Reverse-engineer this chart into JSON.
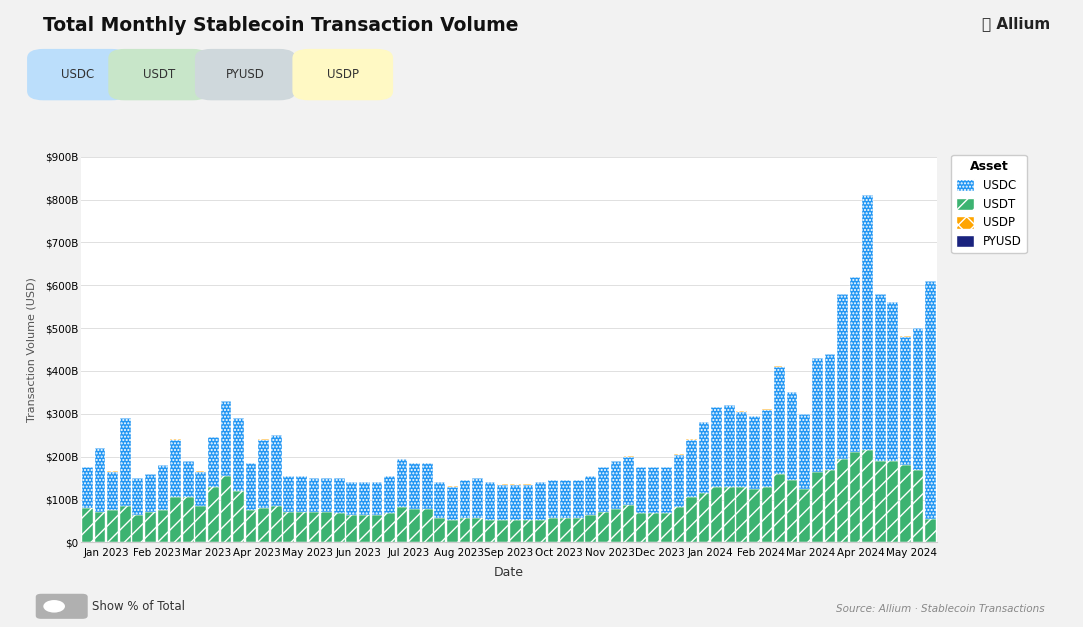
{
  "title": "Total Monthly Stablecoin Transaction Volume",
  "ylabel": "Transaction Volume (USD)",
  "xlabel": "Date",
  "background_color": "#f2f2f2",
  "plot_bg_color": "#ffffff",
  "ylim": [
    0,
    900000000000.0
  ],
  "yticks": [
    0,
    100000000000.0,
    200000000000.0,
    300000000000.0,
    400000000000.0,
    500000000000.0,
    600000000000.0,
    700000000000.0,
    800000000000.0,
    900000000000.0
  ],
  "source_text": "Source: Allium · Stablecoin Transactions",
  "months": [
    "Jan 2023",
    "Feb 2023",
    "Mar 2023",
    "Apr 2023",
    "May 2023",
    "Jun 2023",
    "Jul 2023",
    "Aug 2023",
    "Sep 2023",
    "Oct 2023",
    "Nov 2023",
    "Dec 2023",
    "Jan 2024",
    "Feb 2024",
    "Mar 2024",
    "Apr 2024",
    "May 2024"
  ],
  "usdt_vals": [
    80000000000.0,
    70000000000.0,
    75000000000.0,
    85000000000.0,
    65000000000.0,
    70000000000.0,
    75000000000.0,
    105000000000.0,
    105000000000.0,
    85000000000.0,
    130000000000.0,
    155000000000.0,
    120000000000.0,
    75000000000.0,
    80000000000.0,
    85000000000.0,
    72000000000.0,
    72000000000.0,
    72000000000.0,
    72000000000.0,
    68000000000.0,
    63000000000.0,
    63000000000.0,
    63000000000.0,
    68000000000.0,
    82000000000.0,
    78000000000.0,
    78000000000.0,
    58000000000.0,
    53000000000.0,
    58000000000.0,
    58000000000.0,
    53000000000.0,
    53000000000.0,
    53000000000.0,
    53000000000.0,
    53000000000.0,
    58000000000.0,
    58000000000.0,
    58000000000.0,
    63000000000.0,
    72000000000.0,
    78000000000.0,
    88000000000.0,
    68000000000.0,
    68000000000.0,
    68000000000.0,
    83000000000.0,
    105000000000.0,
    115000000000.0,
    130000000000.0,
    130000000000.0,
    130000000000.0,
    125000000000.0,
    130000000000.0,
    160000000000.0,
    145000000000.0,
    125000000000.0,
    165000000000.0,
    170000000000.0,
    195000000000.0,
    210000000000.0,
    215000000000.0,
    190000000000.0,
    190000000000.0,
    180000000000.0,
    170000000000.0,
    55000000000.0
  ],
  "usdc_vals": [
    95000000000.0,
    150000000000.0,
    90000000000.0,
    205000000000.0,
    85000000000.0,
    90000000000.0,
    105000000000.0,
    135000000000.0,
    85000000000.0,
    80000000000.0,
    115000000000.0,
    175000000000.0,
    170000000000.0,
    110000000000.0,
    160000000000.0,
    165000000000.0,
    83000000000.0,
    83000000000.0,
    78000000000.0,
    78000000000.0,
    82000000000.0,
    77000000000.0,
    77000000000.0,
    77000000000.0,
    87000000000.0,
    113000000000.0,
    107000000000.0,
    107000000000.0,
    82000000000.0,
    77000000000.0,
    87000000000.0,
    92000000000.0,
    87000000000.0,
    82000000000.0,
    82000000000.0,
    82000000000.0,
    87000000000.0,
    87000000000.0,
    87000000000.0,
    87000000000.0,
    92000000000.0,
    103000000000.0,
    112000000000.0,
    112000000000.0,
    107000000000.0,
    107000000000.0,
    107000000000.0,
    122000000000.0,
    135000000000.0,
    165000000000.0,
    185000000000.0,
    190000000000.0,
    175000000000.0,
    170000000000.0,
    180000000000.0,
    250000000000.0,
    205000000000.0,
    175000000000.0,
    265000000000.0,
    270000000000.0,
    385000000000.0,
    410000000000.0,
    595000000000.0,
    390000000000.0,
    370000000000.0,
    300000000000.0,
    330000000000.0,
    555000000000.0
  ],
  "usdp_vals": [
    500000000.0,
    500000000.0,
    500000000.0,
    500000000.0,
    500000000.0,
    500000000.0,
    500000000.0,
    500000000.0,
    500000000.0,
    500000000.0,
    500000000.0,
    500000000.0,
    500000000.0,
    500000000.0,
    500000000.0,
    500000000.0,
    500000000.0,
    500000000.0,
    500000000.0,
    500000000.0,
    500000000.0,
    500000000.0,
    500000000.0,
    500000000.0,
    500000000.0,
    500000000.0,
    500000000.0,
    500000000.0,
    500000000.0,
    500000000.0,
    500000000.0,
    500000000.0,
    500000000.0,
    500000000.0,
    500000000.0,
    500000000.0,
    500000000.0,
    500000000.0,
    500000000.0,
    500000000.0,
    500000000.0,
    500000000.0,
    500000000.0,
    500000000.0,
    500000000.0,
    500000000.0,
    500000000.0,
    500000000.0,
    500000000.0,
    500000000.0,
    500000000.0,
    500000000.0,
    500000000.0,
    500000000.0,
    500000000.0,
    500000000.0,
    500000000.0,
    500000000.0,
    500000000.0,
    500000000.0,
    500000000.0,
    500000000.0,
    500000000.0,
    500000000.0,
    500000000.0,
    500000000.0,
    500000000.0,
    500000000.0
  ],
  "pyusd_vals": [
    0.0,
    0.0,
    0.0,
    0.0,
    0.0,
    0.0,
    0.0,
    0.0,
    0.0,
    0.0,
    0.0,
    0.0,
    0.0,
    0.0,
    0.0,
    0.0,
    0.0,
    0.0,
    0.0,
    0.0,
    0.0,
    0.0,
    0.0,
    0.0,
    0.0,
    0.0,
    0.0,
    0.0,
    0.0,
    0.0,
    0.0,
    0.0,
    0.0,
    0.0,
    0.0,
    0.0,
    0.0,
    0.0,
    0.0,
    0.0,
    0.0,
    0.0,
    0.0,
    0.0,
    0.0,
    0.0,
    0.0,
    0.0,
    0.0,
    0.0,
    0.0,
    0.0,
    0.0,
    0.0,
    0.0,
    0.0,
    0.0,
    0.0,
    0.0,
    0.0,
    0.0,
    0.0,
    0.0,
    0.0,
    0.0,
    0.0,
    0.0,
    0.0
  ],
  "usdc_color": "#2196F3",
  "usdt_color": "#3CB371",
  "usdp_color": "#FFA500",
  "pyusd_color": "#1a237e",
  "badge_order": [
    "USDC",
    "USDT",
    "PYUSD",
    "USDP"
  ],
  "badge_colors": {
    "USDC": "#BBDEFB",
    "USDT": "#C8E6C9",
    "PYUSD": "#CFD8DC",
    "USDP": "#FFF9C4"
  }
}
